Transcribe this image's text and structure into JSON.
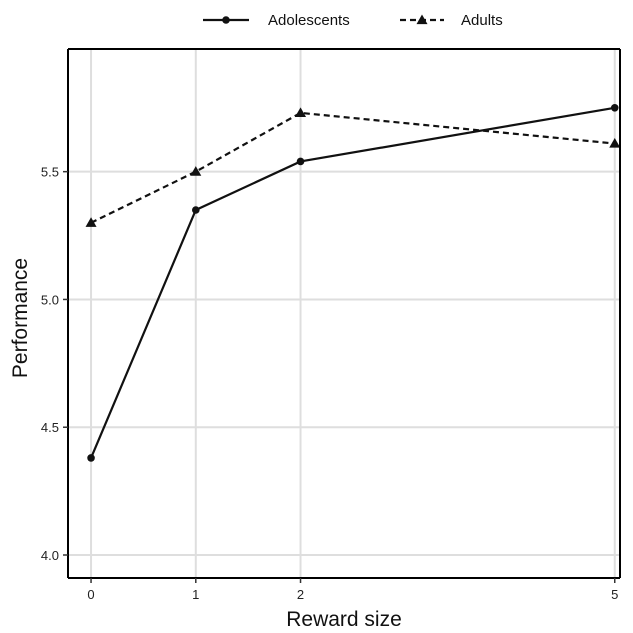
{
  "chart_data": {
    "type": "line",
    "x": [
      0,
      1,
      2,
      5
    ],
    "x_ticks": [
      "0",
      "1",
      "2",
      "5"
    ],
    "y_ticks": [
      "4.0",
      "4.5",
      "5.0",
      "5.5"
    ],
    "xlabel": "Reward size",
    "ylabel": "Performance",
    "xlim": [
      -0.22,
      5.05
    ],
    "ylim": [
      3.91,
      5.98
    ],
    "grid": true,
    "legend_position": "top-center",
    "series": [
      {
        "name": "Adolescents",
        "values": [
          4.38,
          5.35,
          5.54,
          5.75
        ],
        "line_style": "solid",
        "marker": "circle",
        "color": "#111111"
      },
      {
        "name": "Adults",
        "values": [
          5.3,
          5.5,
          5.73,
          5.61
        ],
        "line_style": "dashed",
        "marker": "triangle",
        "color": "#111111"
      }
    ]
  }
}
